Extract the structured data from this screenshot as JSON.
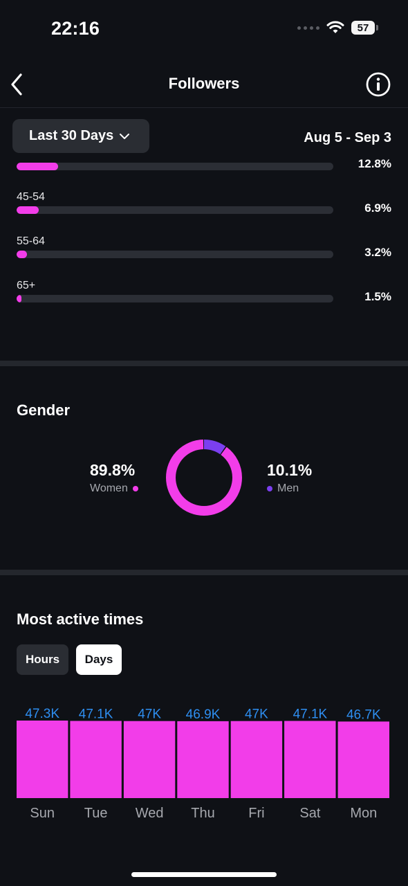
{
  "status_bar": {
    "time": "22:16",
    "battery": "57",
    "icons": [
      "signal-dots-icon",
      "wifi-icon",
      "battery-icon"
    ]
  },
  "header": {
    "title": "Followers",
    "back_icon": "chevron-left-icon",
    "info_icon": "info-icon"
  },
  "filter": {
    "range_label": "Last 30 Days",
    "date_range": "Aug 5 - Sep 3"
  },
  "age": {
    "partial_pct": "12.8%",
    "rows": [
      {
        "label": "45-54",
        "pct": "6.9%",
        "value": 6.9
      },
      {
        "label": "55-64",
        "pct": "3.2%",
        "value": 3.2
      },
      {
        "label": "65+",
        "pct": "1.5%",
        "value": 1.5
      }
    ],
    "partial_value": 12.8
  },
  "gender": {
    "title": "Gender",
    "women_value": "89.8%",
    "women_label": "Women",
    "men_value": "10.1%",
    "men_label": "Men",
    "women_share": 89.8,
    "men_share": 10.1,
    "colors": {
      "women": "#f23de9",
      "men": "#7b3ff0"
    }
  },
  "active_times": {
    "title": "Most active times",
    "toggle_hours": "Hours",
    "toggle_days": "Days",
    "selected": "Days"
  },
  "chart_data": {
    "type": "bar",
    "categories": [
      "Sun",
      "Tue",
      "Wed",
      "Thu",
      "Fri",
      "Sat",
      "Mon"
    ],
    "values": [
      47.3,
      47.1,
      47.0,
      46.9,
      47.0,
      47.1,
      46.7
    ],
    "value_labels": [
      "47.3K",
      "47.1K",
      "47K",
      "46.9K",
      "47K",
      "47.1K",
      "46.7K"
    ],
    "bar_color": "#f23de9",
    "label_color": "#2e8ef0",
    "title": "",
    "xlabel": "",
    "ylabel": ""
  }
}
